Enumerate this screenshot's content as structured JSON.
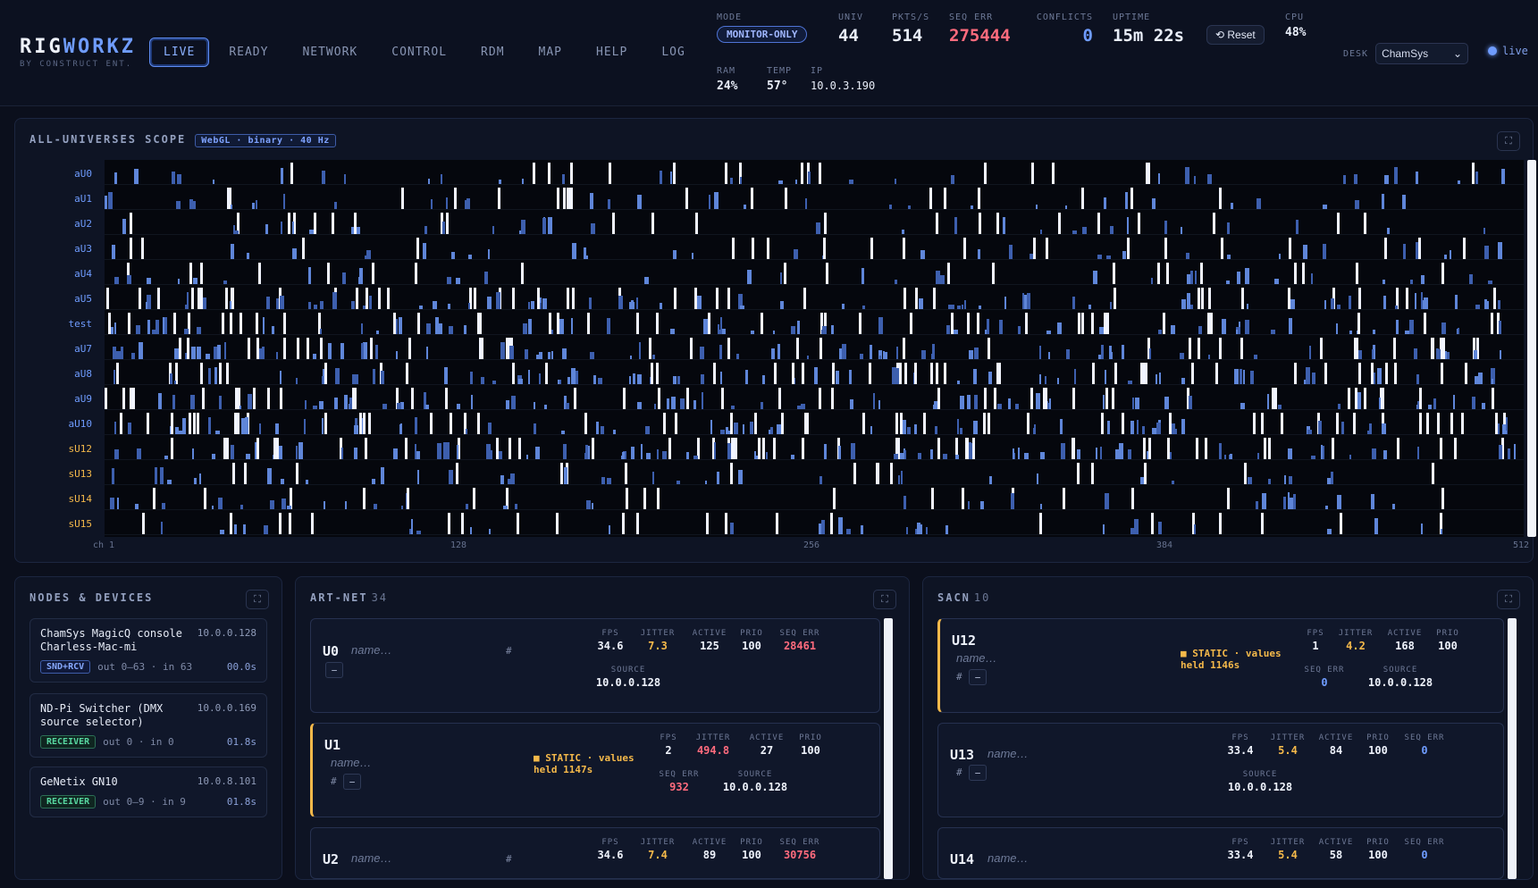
{
  "brand": {
    "name_a": "RIG",
    "name_b": "WORKZ",
    "subtitle": "BY CONSTRUCT ENT."
  },
  "nav": {
    "tabs": [
      "LIVE",
      "READY",
      "NETWORK",
      "CONTROL",
      "RDM",
      "MAP",
      "HELP",
      "LOG"
    ],
    "active": "LIVE"
  },
  "stats": {
    "mode": {
      "label": "MODE",
      "value": "MONITOR-ONLY"
    },
    "univ": {
      "label": "UNIV",
      "value": "44"
    },
    "pkts": {
      "label": "PKTS/S",
      "value": "514"
    },
    "seq_err": {
      "label": "SEQ ERR",
      "value": "275444"
    },
    "conflicts": {
      "label": "CONFLICTS",
      "value": "0"
    },
    "uptime": {
      "label": "UPTIME",
      "value": "15m 22s"
    },
    "reset": "⟲ Reset",
    "cpu": {
      "label": "CPU",
      "value": "48%"
    },
    "ram": {
      "label": "RAM",
      "value": "24%"
    },
    "temp": {
      "label": "TEMP",
      "value": "57°"
    },
    "ip": {
      "label": "IP",
      "value": "10.0.3.190"
    }
  },
  "desk": {
    "label": "DESK",
    "value": "ChamSys",
    "chevron": "⌄"
  },
  "live": {
    "label": "live"
  },
  "scope": {
    "title": "ALL-UNIVERSES SCOPE",
    "badge": "WebGL · binary · 40 Hz",
    "expand": "⛶",
    "rows": [
      "aU0",
      "aU1",
      "aU2",
      "aU3",
      "aU4",
      "aU5",
      "test",
      "aU7",
      "aU8",
      "aU9",
      "aU10",
      "sU12",
      "sU13",
      "sU14",
      "sU15"
    ],
    "axis": [
      "ch 1",
      "128",
      "256",
      "384",
      "512"
    ]
  },
  "nodes": {
    "title": "NODES & DEVICES",
    "expand": "⛶",
    "items": [
      {
        "name": "ChamSys MagicQ console Charless-Mac-mi",
        "ip": "10.0.0.128",
        "role": "SND+RCV",
        "io": "out 0–63 · in 63",
        "time": "00.0s"
      },
      {
        "name": "ND-Pi Switcher (DMX source selector)",
        "ip": "10.0.0.169",
        "role": "RECEIVER",
        "io": "out 0 · in 0",
        "time": "01.8s"
      },
      {
        "name": "GeNetix GN10",
        "ip": "10.0.8.101",
        "role": "RECEIVER",
        "io": "out 0–9 · in 9",
        "time": "01.8s"
      }
    ]
  },
  "labels": {
    "fps": "FPS",
    "jitter": "JITTER",
    "active": "ACTIVE",
    "prio": "PRIO",
    "seq_err": "SEQ ERR",
    "source": "SOURCE",
    "name_placeholder": "name…",
    "hash": "#",
    "minus": "−"
  },
  "artnet": {
    "title": "ART-NET",
    "count": "34",
    "expand": "⛶",
    "u0": {
      "id": "U0",
      "fps": "34.6",
      "jitter": "7.3",
      "active": "125",
      "prio": "100",
      "seq_err": "28461",
      "source": "10.0.0.128"
    },
    "u1": {
      "id": "U1",
      "static": "■ STATIC · values",
      "held": "held 1147s",
      "fps": "2",
      "jitter": "494.8",
      "active": "27",
      "prio": "100",
      "seq_err": "932",
      "source": "10.0.0.128"
    },
    "u2": {
      "id": "U2",
      "fps": "34.6",
      "jitter": "7.4",
      "active": "89",
      "prio": "100",
      "seq_err": "30756"
    }
  },
  "sacn": {
    "title": "SACN",
    "count": "10",
    "expand": "⛶",
    "u12": {
      "id": "U12",
      "static": "■ STATIC · values",
      "held": "held 1146s",
      "fps": "1",
      "jitter": "4.2",
      "active": "168",
      "prio": "100",
      "seq_err": "0",
      "source": "10.0.0.128"
    },
    "u13": {
      "id": "U13",
      "fps": "33.4",
      "jitter": "5.4",
      "active": "84",
      "prio": "100",
      "seq_err": "0",
      "source": "10.0.0.128"
    },
    "u14": {
      "id": "U14",
      "fps": "33.4",
      "jitter": "5.4",
      "active": "58",
      "prio": "100",
      "seq_err": "0"
    }
  },
  "colors": {
    "accent": "#6f9cff",
    "error": "#ff6b7d",
    "warning": "#f5b94a",
    "ok": "#57d6a0",
    "artnet_label": "#6f9cff",
    "sacn_label": "#f5b94a"
  }
}
